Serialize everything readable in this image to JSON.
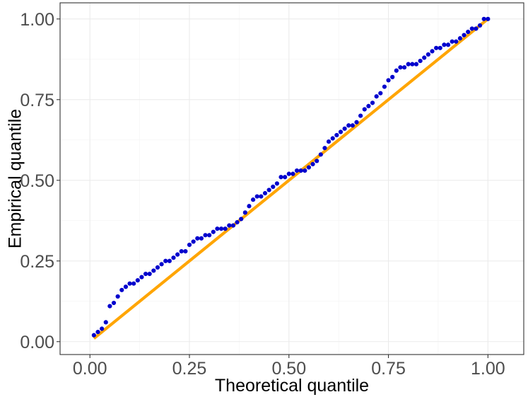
{
  "chart_data": {
    "type": "scatter",
    "title": "",
    "xlabel": "Theoretical quantile",
    "ylabel": "Empirical quantile",
    "xlim": [
      -0.075,
      1.09
    ],
    "ylim": [
      -0.04,
      1.05
    ],
    "x_ticks": [
      0.0,
      0.25,
      0.5,
      0.75,
      1.0
    ],
    "x_tick_labels": [
      "0.00",
      "0.25",
      "0.50",
      "0.75",
      "1.00"
    ],
    "y_ticks": [
      0.0,
      0.25,
      0.5,
      0.75,
      1.0
    ],
    "y_tick_labels": [
      "0.00",
      "0.25",
      "0.50",
      "0.75",
      "1.00"
    ],
    "grid": true,
    "point_color": "#0000cd",
    "line_color": "#ffa500",
    "reference_line": {
      "x": [
        0.01,
        1.0
      ],
      "y": [
        0.01,
        1.0
      ]
    },
    "series": [
      {
        "x": [
          0.01,
          0.02,
          0.03,
          0.04,
          0.05,
          0.06,
          0.07,
          0.08,
          0.09,
          0.1,
          0.11,
          0.12,
          0.13,
          0.14,
          0.15,
          0.16,
          0.17,
          0.18,
          0.19,
          0.2,
          0.21,
          0.22,
          0.23,
          0.24,
          0.25,
          0.26,
          0.27,
          0.28,
          0.29,
          0.3,
          0.31,
          0.32,
          0.33,
          0.34,
          0.35,
          0.36,
          0.37,
          0.38,
          0.39,
          0.4,
          0.41,
          0.42,
          0.43,
          0.44,
          0.45,
          0.46,
          0.47,
          0.48,
          0.49,
          0.5,
          0.51,
          0.52,
          0.53,
          0.54,
          0.55,
          0.56,
          0.57,
          0.58,
          0.59,
          0.6,
          0.61,
          0.62,
          0.63,
          0.64,
          0.65,
          0.66,
          0.67,
          0.68,
          0.69,
          0.7,
          0.71,
          0.72,
          0.73,
          0.74,
          0.75,
          0.76,
          0.77,
          0.78,
          0.79,
          0.8,
          0.81,
          0.82,
          0.83,
          0.84,
          0.85,
          0.86,
          0.87,
          0.88,
          0.89,
          0.9,
          0.91,
          0.92,
          0.93,
          0.94,
          0.95,
          0.96,
          0.97,
          0.98,
          0.99,
          1.0
        ],
        "y": [
          0.02,
          0.03,
          0.04,
          0.06,
          0.11,
          0.12,
          0.14,
          0.16,
          0.17,
          0.18,
          0.18,
          0.19,
          0.2,
          0.21,
          0.21,
          0.22,
          0.23,
          0.24,
          0.25,
          0.25,
          0.26,
          0.27,
          0.28,
          0.28,
          0.3,
          0.31,
          0.32,
          0.32,
          0.33,
          0.33,
          0.34,
          0.35,
          0.35,
          0.35,
          0.36,
          0.36,
          0.37,
          0.38,
          0.4,
          0.42,
          0.44,
          0.45,
          0.45,
          0.46,
          0.47,
          0.48,
          0.49,
          0.51,
          0.51,
          0.52,
          0.52,
          0.53,
          0.53,
          0.53,
          0.54,
          0.55,
          0.56,
          0.58,
          0.6,
          0.62,
          0.63,
          0.64,
          0.65,
          0.66,
          0.67,
          0.67,
          0.68,
          0.7,
          0.72,
          0.73,
          0.74,
          0.76,
          0.77,
          0.79,
          0.81,
          0.82,
          0.84,
          0.85,
          0.85,
          0.86,
          0.86,
          0.86,
          0.87,
          0.88,
          0.89,
          0.9,
          0.91,
          0.91,
          0.92,
          0.92,
          0.93,
          0.93,
          0.94,
          0.95,
          0.96,
          0.97,
          0.97,
          0.98,
          1.0,
          1.0
        ]
      }
    ]
  }
}
